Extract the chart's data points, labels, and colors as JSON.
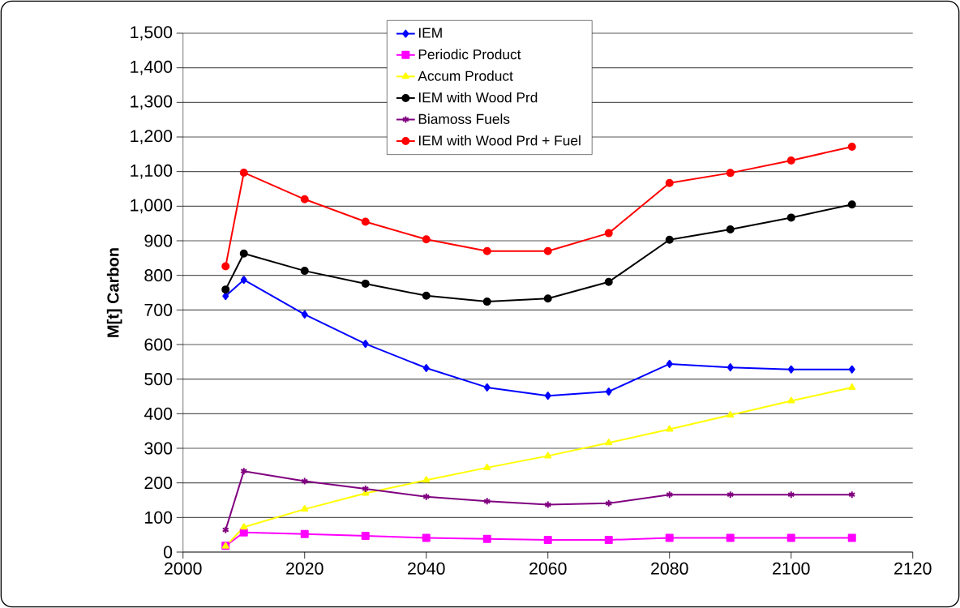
{
  "chart_data": {
    "type": "line",
    "ylabel": "M[t] Carbon",
    "xlim": [
      2000,
      2120
    ],
    "xticks": [
      2000,
      2020,
      2040,
      2060,
      2080,
      2100,
      2120
    ],
    "ylim": [
      0,
      1500
    ],
    "yticks": [
      0,
      100,
      200,
      300,
      400,
      500,
      600,
      700,
      800,
      900,
      {
        "value": 1000,
        "label": "1,000"
      },
      {
        "value": 1100,
        "label": "1,100"
      },
      {
        "value": 1200,
        "label": "1,200"
      },
      {
        "value": 1300,
        "label": "1,300"
      },
      {
        "value": 1400,
        "label": "1,400"
      },
      {
        "value": 1500,
        "label": "1,500"
      }
    ],
    "grid": "y",
    "legend": "top",
    "x": [
      2007,
      2010,
      2020,
      2030,
      2040,
      2050,
      2060,
      2070,
      2080,
      2090,
      2100,
      2110
    ],
    "series": [
      {
        "name": "IEM",
        "color": "#0000ff",
        "marker": "diamond",
        "values": [
          740,
          787,
          687,
          602,
          532,
          476,
          452,
          464,
          544,
          534,
          528,
          528
        ]
      },
      {
        "name": "Periodic Product",
        "color": "#ff00ff",
        "marker": "square",
        "values": [
          18,
          57,
          52,
          47,
          41,
          38,
          35,
          35,
          41,
          41,
          41,
          41
        ]
      },
      {
        "name": "Accum Product",
        "color": "#ffff00",
        "marker": "triangle",
        "values": [
          17,
          72,
          124,
          170,
          208,
          244,
          278,
          316,
          355,
          396,
          437,
          476
        ]
      },
      {
        "name": "IEM with Wood Prd",
        "color": "#000000",
        "marker": "circle",
        "values": [
          759,
          863,
          813,
          776,
          741,
          724,
          733,
          781,
          903,
          933,
          967,
          1005
        ]
      },
      {
        "name": "Biamoss Fuels",
        "color": "#800080",
        "marker": "cross",
        "values": [
          64,
          234,
          205,
          183,
          160,
          147,
          137,
          141,
          166,
          166,
          166,
          166
        ]
      },
      {
        "name": "IEM with Wood Prd + Fuel",
        "color": "#ff0000",
        "marker": "circle",
        "values": [
          826,
          1097,
          1020,
          955,
          904,
          870,
          870,
          922,
          1067,
          1096,
          1132,
          1172
        ]
      }
    ]
  }
}
